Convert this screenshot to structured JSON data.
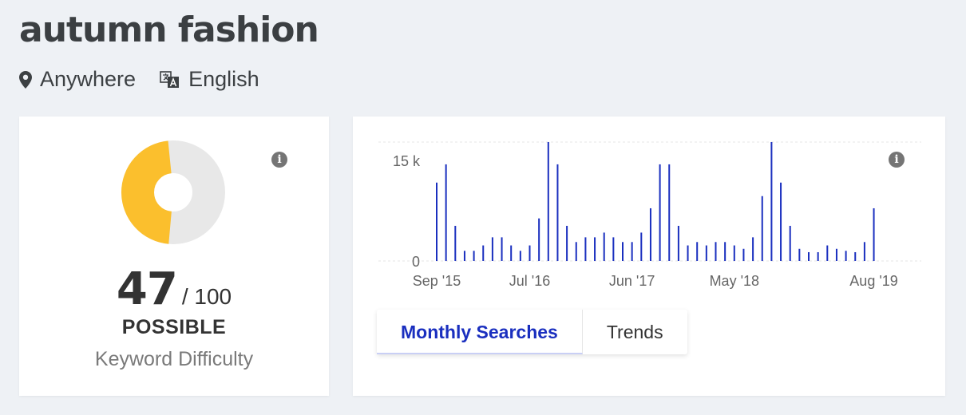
{
  "keyword": "autumn fashion",
  "location": {
    "label": "Anywhere",
    "icon": "map-marker-icon"
  },
  "language": {
    "label": "English",
    "icon": "translate-icon"
  },
  "keyword_difficulty": {
    "score": "47",
    "max": "/ 100",
    "level": "POSSIBLE",
    "label": "Keyword Difficulty",
    "fraction": 0.47,
    "colors": {
      "filled": "#fbbf2d",
      "empty": "#e8e8e8"
    }
  },
  "tabs": [
    {
      "label": "Monthly Searches",
      "active": true
    },
    {
      "label": "Trends",
      "active": false
    }
  ],
  "chart_data": {
    "type": "bar",
    "color": "#1a2fbf",
    "ylabels": [
      "15 k",
      "0"
    ],
    "ylim": [
      0,
      17600
    ],
    "xticks": [
      {
        "label": "Sep '15",
        "index": 0
      },
      {
        "label": "Jul '16",
        "index": 10
      },
      {
        "label": "Jun '17",
        "index": 21
      },
      {
        "label": "May '18",
        "index": 32
      },
      {
        "label": "Aug '19",
        "index": 47
      }
    ],
    "values": [
      11600,
      14300,
      5200,
      1500,
      1500,
      2300,
      3500,
      3500,
      2300,
      1500,
      2300,
      6300,
      17600,
      14300,
      5200,
      2800,
      3500,
      3500,
      4200,
      3500,
      2800,
      2800,
      4200,
      7800,
      14300,
      14300,
      5200,
      2300,
      2800,
      2300,
      2800,
      2800,
      2300,
      1800,
      3500,
      9600,
      17600,
      11600,
      5200,
      1800,
      1300,
      1300,
      2300,
      1800,
      1500,
      1300,
      2800,
      7800
    ]
  }
}
